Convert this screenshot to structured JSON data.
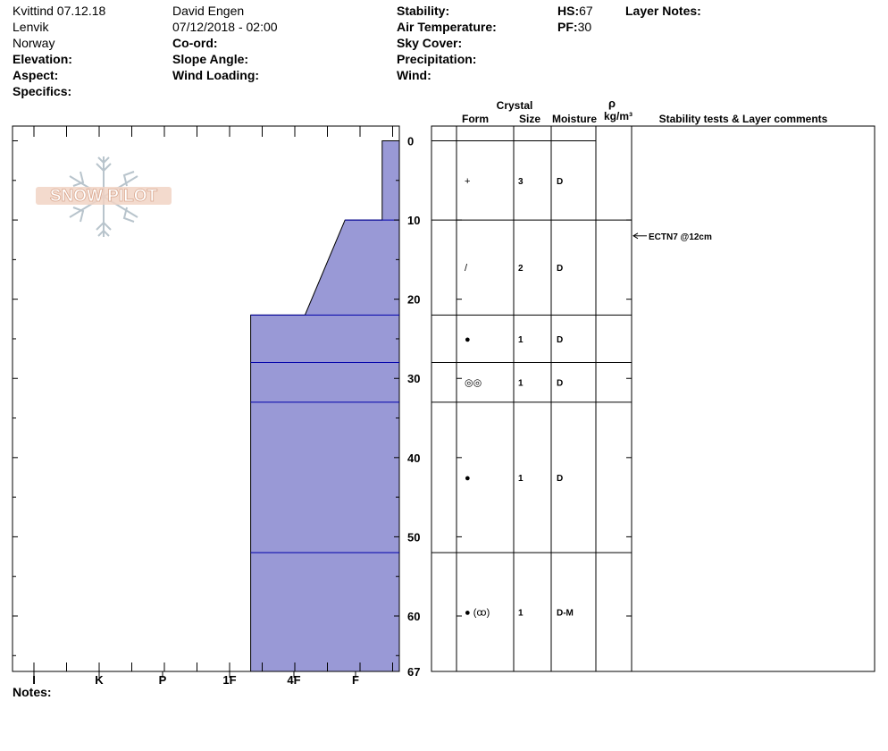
{
  "header": {
    "location": "Kvittind 07.12.18",
    "region": "Lenvik",
    "country": "Norway",
    "elevation_label": "Elevation:",
    "aspect_label": "Aspect:",
    "specifics_label": "Specifics:",
    "observer": "David Engen",
    "datetime": "07/12/2018 - 02:00",
    "coord_label": "Co-ord:",
    "slope_label": "Slope Angle:",
    "wind_loading_label": "Wind Loading:",
    "stability_label": "Stability:",
    "air_temp_label": "Air Temperature:",
    "sky_label": "Sky Cover:",
    "precip_label": "Precipitation:",
    "wind_label": "Wind:",
    "hs_label": "HS:",
    "hs_value": "67",
    "pf_label": "PF:",
    "pf_value": "30",
    "layer_notes_label": "Layer Notes:"
  },
  "logo": {
    "text": "SNOW PILOT"
  },
  "notes_label": "Notes:",
  "table_headers": {
    "crystal": "Crystal",
    "form": "Form",
    "size": "Size",
    "moisture": "Moisture",
    "rho": "ρ",
    "density_unit": "kg/m³",
    "comments": "Stability tests & Layer comments"
  },
  "colors": {
    "fill": "#9999d6",
    "layer_line": "#0000aa",
    "grid": "#000000"
  },
  "chart_data": {
    "type": "area",
    "depth_axis": {
      "range": [
        0,
        67
      ],
      "ticks": [
        "0",
        "10",
        "20",
        "30",
        "40",
        "50",
        "60",
        "67"
      ],
      "tick_values": [
        0,
        10,
        20,
        30,
        40,
        50,
        60,
        67
      ]
    },
    "hardness_axis": {
      "ticks": [
        "I",
        "K",
        "P",
        "1F",
        "4F",
        "F"
      ],
      "scale": [
        "F",
        "4F",
        "1F",
        "P",
        "K",
        "I"
      ]
    },
    "hardness_profile": [
      {
        "depth": 0,
        "hardness": 0.3
      },
      {
        "depth": 10,
        "hardness": 0.3
      },
      {
        "depth": 10,
        "hardness": 0.95
      },
      {
        "depth": 22,
        "hardness": 1.65
      },
      {
        "depth": 22,
        "hardness": 2.6
      },
      {
        "depth": 67,
        "hardness": 2.6
      }
    ],
    "layer_boundaries": [
      10,
      22,
      28,
      33,
      52
    ],
    "layers": [
      {
        "top": 0,
        "bottom": 10,
        "form": "+",
        "size": "3",
        "moisture": "D"
      },
      {
        "top": 10,
        "bottom": 22,
        "form": "/",
        "size": "2",
        "moisture": "D"
      },
      {
        "top": 22,
        "bottom": 28,
        "form": "●",
        "size": "1",
        "moisture": "D"
      },
      {
        "top": 28,
        "bottom": 33,
        "form": "◎◎",
        "size": "1",
        "moisture": "D"
      },
      {
        "top": 33,
        "bottom": 52,
        "form": "●",
        "size": "1",
        "moisture": "D"
      },
      {
        "top": 52,
        "bottom": 67,
        "form": "● (ꝏ)",
        "size": "1",
        "moisture": "D-M"
      }
    ],
    "stability_tests": [
      {
        "depth": 12,
        "label": "ECTN7 @12cm"
      }
    ]
  }
}
